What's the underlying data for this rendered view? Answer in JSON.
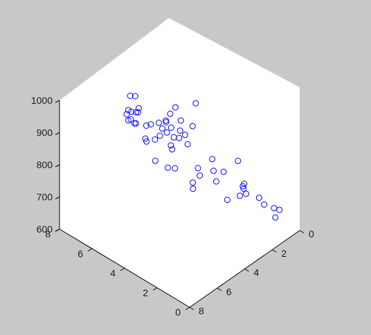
{
  "chart_data": {
    "type": "scatter",
    "projection": "3d-isometric",
    "title": "",
    "xlabel": "",
    "ylabel": "",
    "zlabel": "",
    "x_ticks": [
      "0",
      "2",
      "4",
      "6",
      "8"
    ],
    "y_ticks": [
      "0",
      "2",
      "4",
      "6",
      "8"
    ],
    "z_ticks": [
      "600",
      "700",
      "800",
      "900",
      "1000"
    ],
    "xlim": [
      0,
      8
    ],
    "ylim": [
      0,
      8
    ],
    "zlim": [
      600,
      1000
    ],
    "grid": false,
    "marker": "circle-open",
    "colors": {
      "figure_bg": "#c8c8c8",
      "axes_bg": "#ffffff",
      "marker": "#0000ff",
      "text": "#1a1a1a"
    },
    "points": [
      {
        "x": 1.0,
        "y": 0.4,
        "z": 682
      },
      {
        "x": 1.3,
        "y": 0.4,
        "z": 667
      },
      {
        "x": 1.4,
        "y": 1.0,
        "z": 692
      },
      {
        "x": 1.3,
        "y": 2.4,
        "z": 703
      },
      {
        "x": 2.1,
        "y": 1.9,
        "z": 713
      },
      {
        "x": 2.0,
        "y": 1.6,
        "z": 725
      },
      {
        "x": 2.9,
        "y": 2.0,
        "z": 721
      },
      {
        "x": 2.1,
        "y": 3.6,
        "z": 775
      },
      {
        "x": 2.4,
        "y": 3.1,
        "z": 730
      },
      {
        "x": 0.7,
        "y": 3.2,
        "z": 740
      },
      {
        "x": 0.7,
        "y": 5.8,
        "z": 840
      },
      {
        "x": 1.2,
        "y": 2.4,
        "z": 708
      },
      {
        "x": 3.3,
        "y": 4.1,
        "z": 842
      },
      {
        "x": 3.6,
        "y": 3.1,
        "z": 784
      },
      {
        "x": 3.5,
        "y": 3.3,
        "z": 798
      },
      {
        "x": 3.0,
        "y": 5.2,
        "z": 821
      },
      {
        "x": 3.5,
        "y": 5.7,
        "z": 866
      },
      {
        "x": 4.4,
        "y": 4.2,
        "z": 868
      },
      {
        "x": 3.8,
        "y": 5.0,
        "z": 898
      },
      {
        "x": 3.9,
        "y": 4.6,
        "z": 896
      },
      {
        "x": 3.8,
        "y": 6.9,
        "z": 921
      },
      {
        "x": 3.7,
        "y": 5.1,
        "z": 897
      },
      {
        "x": 2.9,
        "y": 4.9,
        "z": 848
      },
      {
        "x": 3.2,
        "y": 4.7,
        "z": 840
      },
      {
        "x": 4.3,
        "y": 4.2,
        "z": 853
      },
      {
        "x": 4.2,
        "y": 4.9,
        "z": 893
      },
      {
        "x": 4.6,
        "y": 4.7,
        "z": 889
      },
      {
        "x": 4.1,
        "y": 4.7,
        "z": 884
      },
      {
        "x": 1.3,
        "y": 1.4,
        "z": 698
      },
      {
        "x": 0.8,
        "y": 0.9,
        "z": 666
      },
      {
        "x": 1.6,
        "y": 2.1,
        "z": 714
      },
      {
        "x": 2.1,
        "y": 2.9,
        "z": 757
      },
      {
        "x": 2.6,
        "y": 3.1,
        "z": 769
      },
      {
        "x": 2.3,
        "y": 5.1,
        "z": 811
      },
      {
        "x": 2.2,
        "y": 6.1,
        "z": 843
      },
      {
        "x": 1.9,
        "y": 5.7,
        "z": 825
      },
      {
        "x": 1.7,
        "y": 6.2,
        "z": 845
      },
      {
        "x": 1.4,
        "y": 5.4,
        "z": 802
      },
      {
        "x": 3.9,
        "y": 6.6,
        "z": 896
      },
      {
        "x": 4.3,
        "y": 6.3,
        "z": 904
      },
      {
        "x": 5.2,
        "y": 4.5,
        "z": 901
      },
      {
        "x": 5.7,
        "y": 4.6,
        "z": 907
      },
      {
        "x": 5.6,
        "y": 5.9,
        "z": 949
      },
      {
        "x": 5.3,
        "y": 5.9,
        "z": 924
      },
      {
        "x": 5.6,
        "y": 5.8,
        "z": 933
      },
      {
        "x": 5.4,
        "y": 5.5,
        "z": 927
      },
      {
        "x": 4.4,
        "y": 6.7,
        "z": 946
      },
      {
        "x": 4.8,
        "y": 6.0,
        "z": 928
      },
      {
        "x": 4.2,
        "y": 5.6,
        "z": 885
      },
      {
        "x": 5.4,
        "y": 3.1,
        "z": 860
      },
      {
        "x": 5.8,
        "y": 3.2,
        "z": 871
      },
      {
        "x": 6.1,
        "y": 5.0,
        "z": 963
      },
      {
        "x": 5.0,
        "y": 5.2,
        "z": 917
      },
      {
        "x": 5.9,
        "y": 4.5,
        "z": 925
      },
      {
        "x": 5.5,
        "y": 5.7,
        "z": 960
      },
      {
        "x": 5.6,
        "y": 5.8,
        "z": 965
      },
      {
        "x": 6.0,
        "y": 3.8,
        "z": 880
      },
      {
        "x": 4.7,
        "y": 2.6,
        "z": 810
      },
      {
        "x": 4.8,
        "y": 2.5,
        "z": 797
      }
    ]
  }
}
